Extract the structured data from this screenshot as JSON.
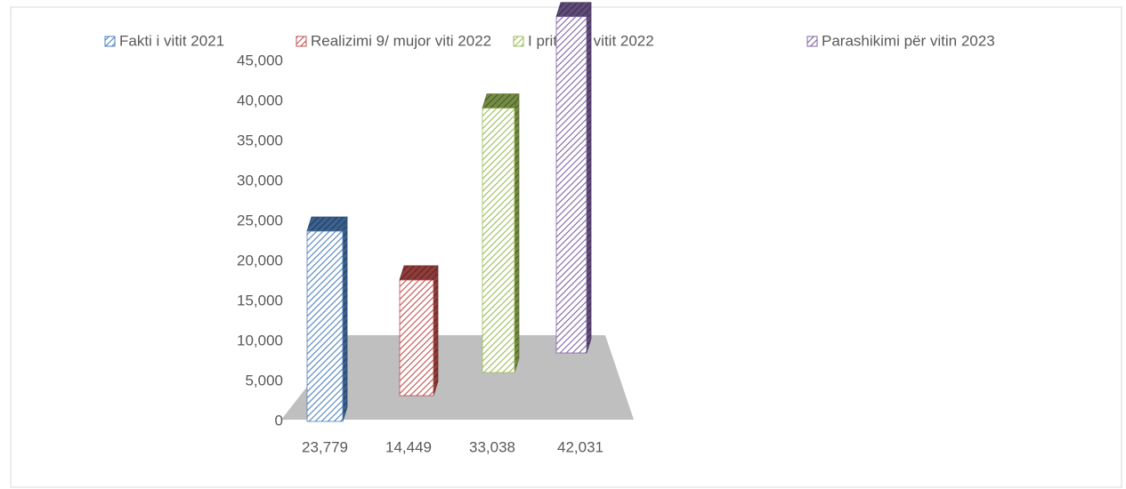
{
  "chart_data": {
    "type": "bar3d",
    "series": [
      {
        "name": "Fakti i vitit 2021",
        "color": "#4f81bd",
        "values": [
          23779
        ],
        "value_labels": [
          "23,779"
        ]
      },
      {
        "name": "Realizimi 9/ mujor viti 2022",
        "color": "#c0504d",
        "values": [
          14449
        ],
        "value_labels": [
          "14,449"
        ]
      },
      {
        "name": "I pritshmi vitit 2022",
        "color": "#9bbb59",
        "values": [
          33038
        ],
        "value_labels": [
          "33,038"
        ]
      },
      {
        "name": "Parashikimi për vitin 2023",
        "color": "#8064a2",
        "values": [
          42031
        ],
        "value_labels": [
          "42,031"
        ]
      }
    ],
    "ylim": [
      0,
      45000
    ],
    "yticks": [
      0,
      {
        "value": 5000,
        "label": "5,000"
      },
      {
        "value": 10000,
        "label": "10,000"
      },
      {
        "value": 15000,
        "label": "15,000"
      },
      {
        "value": 20000,
        "label": "20,000"
      },
      {
        "value": 25000,
        "label": "25,000"
      },
      {
        "value": 30000,
        "label": "30,000"
      },
      {
        "value": 35000,
        "label": "35,000"
      },
      {
        "value": 40000,
        "label": "40,000"
      },
      {
        "value": 45000,
        "label": "45,000"
      }
    ],
    "legend": "top"
  }
}
